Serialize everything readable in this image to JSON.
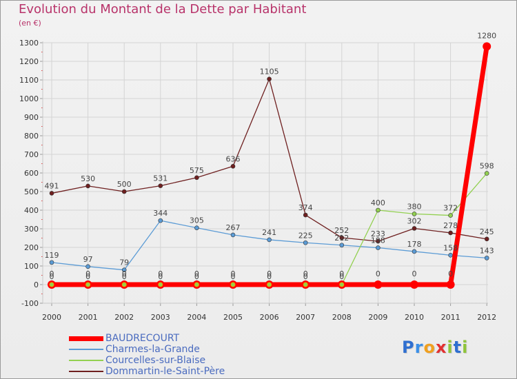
{
  "title": "Evolution du Montant de la Dette par Habitant",
  "subtitle": "(en €)",
  "logo": {
    "text": "Proxiti",
    "colors": [
      "#2f6fd0",
      "#3a8fe8",
      "#f0a020",
      "#e23030",
      "#8fc43a",
      "#2f6fd0",
      "#8fc43a"
    ]
  },
  "colors": {
    "grid": "#d4d4d4",
    "axis": "#c8c8c8",
    "tick_text": "#333333",
    "value_text": "#444444"
  },
  "chart_data": {
    "type": "line",
    "title": "Evolution du Montant de la Dette par Habitant",
    "ylabel": "(en €)",
    "x": [
      "2000",
      "2001",
      "2002",
      "2003",
      "2004",
      "2005",
      "2006",
      "2007",
      "2008",
      "2009",
      "2010",
      "2011",
      "2012"
    ],
    "ylim": [
      -100,
      1300
    ],
    "yticks": [
      -100,
      0,
      100,
      200,
      300,
      400,
      500,
      600,
      700,
      800,
      900,
      1000,
      1100,
      1200,
      1300
    ],
    "grid": true,
    "legend_position": "bottom-left",
    "series": [
      {
        "name": "Dommartin-le-Saint-Père",
        "color": "#6e1f1f",
        "width": 1.3,
        "marker": 3,
        "values": [
          491,
          530,
          500,
          531,
          575,
          636,
          1105,
          374,
          252,
          233,
          302,
          278,
          245
        ]
      },
      {
        "name": "Charmes-la-Grande",
        "color": "#5b9bd5",
        "width": 1.3,
        "marker": 3,
        "values": [
          119,
          97,
          79,
          344,
          305,
          267,
          241,
          225,
          212,
          198,
          178,
          158,
          143
        ],
        "labels": [
          "119",
          "97",
          "79",
          "344",
          "305",
          "267",
          "241",
          "225",
          "212",
          "198",
          "178",
          "158",
          "143"
        ]
      },
      {
        "name": "Courcelles-sur-Blaise",
        "color": "#92d050",
        "width": 1.3,
        "marker": 3,
        "values": [
          0,
          0,
          0,
          0,
          0,
          0,
          0,
          0,
          0,
          400,
          380,
          372,
          598
        ],
        "labels": [
          "0",
          "0",
          "0",
          "0",
          "0",
          "0",
          "0",
          "0",
          "0",
          "400",
          "380",
          "372",
          "598"
        ]
      },
      {
        "name": "BAUDRECOURT",
        "color": "#ff0000",
        "width": 7,
        "marker": 6,
        "values": [
          0,
          0,
          0,
          0,
          0,
          0,
          0,
          0,
          0,
          0,
          0,
          0,
          1280
        ]
      }
    ]
  }
}
